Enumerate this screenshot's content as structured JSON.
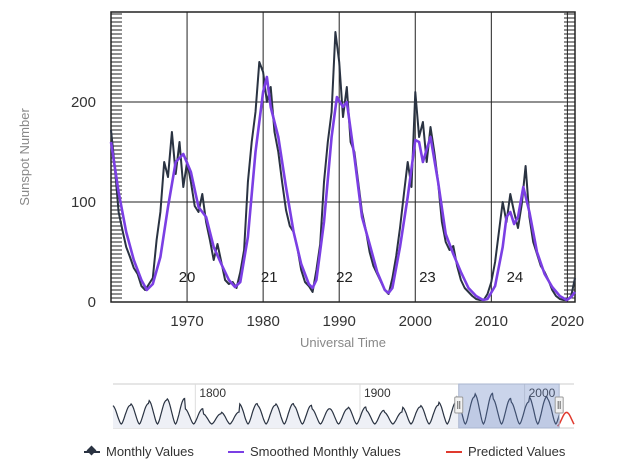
{
  "chart_data": {
    "type": "line",
    "title": "",
    "xlabel": "Universal Time",
    "ylabel": "Sunspot Number",
    "xlim": [
      1960,
      2021
    ],
    "ylim": [
      0,
      290
    ],
    "x_ticks": [
      1970,
      1980,
      1990,
      2000,
      2010,
      2020
    ],
    "y_ticks": [
      0,
      100,
      200
    ],
    "grid": true,
    "cycle_labels": [
      {
        "label": "20",
        "x": 1970
      },
      {
        "label": "21",
        "x": 1980.8
      },
      {
        "label": "22",
        "x": 1990.7
      },
      {
        "label": "23",
        "x": 2001.6
      },
      {
        "label": "24",
        "x": 2013.1
      }
    ],
    "series": [
      {
        "name": "Monthly Values",
        "color": "#2a3342",
        "x": [
          1960.0,
          1960.5,
          1961.0,
          1961.5,
          1962.0,
          1962.5,
          1963.0,
          1963.5,
          1964.0,
          1964.5,
          1965.0,
          1965.5,
          1966.0,
          1966.5,
          1967.0,
          1967.5,
          1968.0,
          1968.5,
          1969.0,
          1969.5,
          1970.0,
          1970.5,
          1971.0,
          1971.5,
          1972.0,
          1972.5,
          1973.0,
          1973.5,
          1974.0,
          1974.5,
          1975.0,
          1975.5,
          1976.0,
          1976.5,
          1977.0,
          1977.5,
          1978.0,
          1978.5,
          1979.0,
          1979.5,
          1980.0,
          1980.5,
          1981.0,
          1981.5,
          1982.0,
          1982.5,
          1983.0,
          1983.5,
          1984.0,
          1984.5,
          1985.0,
          1985.5,
          1986.0,
          1986.5,
          1987.0,
          1987.5,
          1988.0,
          1988.5,
          1989.0,
          1989.5,
          1990.0,
          1990.5,
          1991.0,
          1991.5,
          1992.0,
          1992.5,
          1993.0,
          1993.5,
          1994.0,
          1994.5,
          1995.0,
          1995.5,
          1996.0,
          1996.5,
          1997.0,
          1997.5,
          1998.0,
          1998.5,
          1999.0,
          1999.5,
          2000.0,
          2000.5,
          2001.0,
          2001.5,
          2002.0,
          2002.5,
          2003.0,
          2003.5,
          2004.0,
          2004.5,
          2005.0,
          2005.5,
          2006.0,
          2006.5,
          2007.0,
          2007.5,
          2008.0,
          2008.5,
          2009.0,
          2009.5,
          2010.0,
          2010.5,
          2011.0,
          2011.5,
          2012.0,
          2012.5,
          2013.0,
          2013.5,
          2014.0,
          2014.5,
          2015.0,
          2015.5,
          2016.0,
          2016.5,
          2017.0,
          2017.5,
          2018.0,
          2018.5,
          2019.0,
          2019.5,
          2020.0,
          2020.5,
          2021.0
        ],
        "values": [
          172,
          135,
          90,
          72,
          55,
          45,
          34,
          28,
          16,
          12,
          18,
          24,
          62,
          90,
          140,
          125,
          170,
          128,
          160,
          115,
          140,
          120,
          96,
          90,
          108,
          80,
          62,
          42,
          58,
          40,
          22,
          18,
          20,
          14,
          30,
          52,
          120,
          160,
          190,
          240,
          230,
          200,
          215,
          170,
          150,
          120,
          92,
          76,
          70,
          54,
          32,
          20,
          16,
          10,
          32,
          58,
          120,
          160,
          190,
          270,
          240,
          185,
          215,
          160,
          150,
          120,
          90,
          72,
          50,
          36,
          28,
          20,
          12,
          8,
          24,
          46,
          74,
          108,
          140,
          115,
          210,
          165,
          180,
          140,
          175,
          150,
          120,
          80,
          60,
          52,
          56,
          36,
          22,
          14,
          10,
          6,
          3,
          2,
          2,
          8,
          20,
          40,
          70,
          100,
          80,
          108,
          90,
          74,
          98,
          136,
          85,
          60,
          48,
          36,
          30,
          22,
          12,
          6,
          3,
          2,
          2,
          6,
          24
        ]
      },
      {
        "name": "Smoothed Monthly Values",
        "color": "#7b3fe4",
        "x": [
          1960.0,
          1961.0,
          1962.0,
          1963.0,
          1964.0,
          1964.7,
          1965.5,
          1966.5,
          1967.5,
          1968.5,
          1969.5,
          1970.5,
          1971.5,
          1972.5,
          1973.5,
          1974.5,
          1975.5,
          1976.3,
          1977.0,
          1978.0,
          1979.0,
          1980.0,
          1980.5,
          1981.0,
          1982.0,
          1983.0,
          1984.0,
          1985.0,
          1986.0,
          1986.5,
          1987.0,
          1988.0,
          1989.0,
          1989.7,
          1990.5,
          1991.0,
          1992.0,
          1993.0,
          1994.0,
          1995.0,
          1996.0,
          1996.5,
          1997.0,
          1998.0,
          1999.0,
          2000.0,
          2000.5,
          2001.0,
          2002.0,
          2003.0,
          2004.0,
          2005.0,
          2006.0,
          2007.0,
          2008.0,
          2008.9,
          2009.5,
          2010.5,
          2011.5,
          2012.0,
          2012.5,
          2013.0,
          2013.5,
          2014.2,
          2015.0,
          2016.0,
          2017.0,
          2018.0,
          2019.0,
          2019.9,
          2020.5,
          2021.0
        ],
        "values": [
          160,
          110,
          70,
          42,
          22,
          12,
          18,
          45,
          95,
          140,
          148,
          130,
          95,
          85,
          55,
          38,
          22,
          15,
          20,
          65,
          150,
          210,
          225,
          195,
          165,
          115,
          70,
          38,
          18,
          14,
          22,
          80,
          165,
          205,
          195,
          200,
          145,
          85,
          58,
          30,
          12,
          9,
          14,
          55,
          105,
          162,
          160,
          140,
          165,
          120,
          68,
          48,
          30,
          14,
          6,
          2,
          3,
          16,
          55,
          85,
          90,
          78,
          85,
          115,
          90,
          50,
          28,
          15,
          6,
          2,
          5,
          10
        ]
      }
    ]
  },
  "navigator": {
    "x_labels": [
      {
        "label": "1800",
        "year": 1800
      },
      {
        "label": "1900",
        "year": 1900
      },
      {
        "label": "2000",
        "year": 2000
      }
    ],
    "range": [
      1960,
      2021
    ],
    "predicted_cycle_peak_year": 2025
  },
  "legend": {
    "items": [
      {
        "label": "Monthly Values",
        "color": "#2a3342"
      },
      {
        "label": "Smoothed Monthly Values",
        "color": "#7b3fe4"
      },
      {
        "label": "Predicted Values",
        "color": "#e03a2e"
      }
    ]
  }
}
